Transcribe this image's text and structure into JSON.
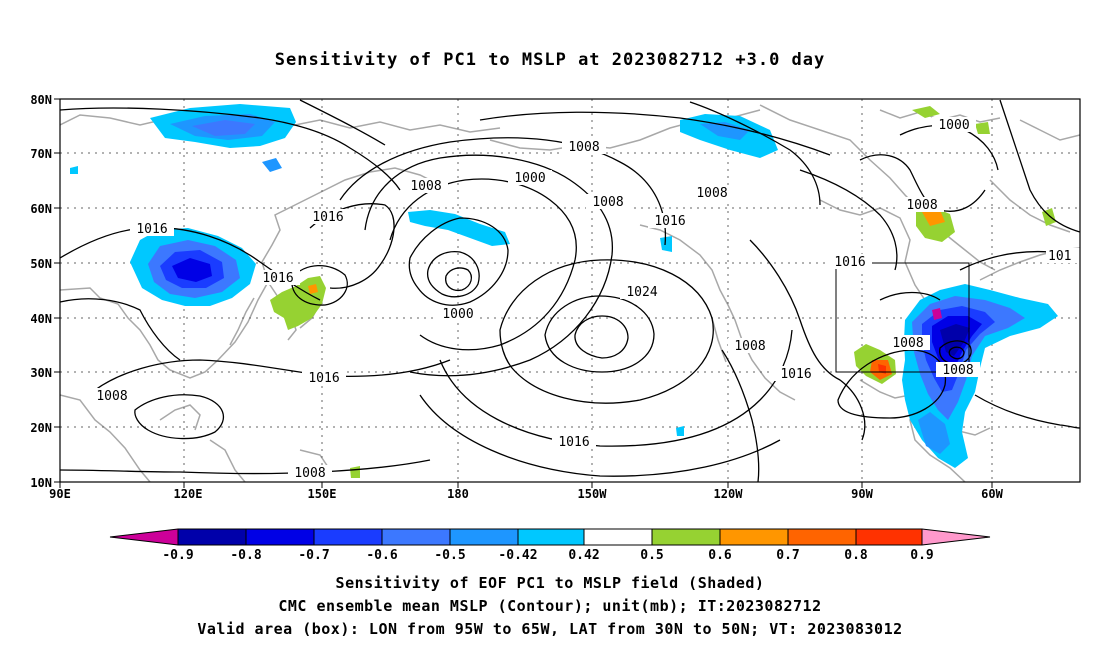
{
  "title": "Sensitivity of PC1 to MSLP at 2023082712 +3.0 day",
  "lat_labels": [
    "80N",
    "70N",
    "60N",
    "50N",
    "40N",
    "30N",
    "20N",
    "10N"
  ],
  "lon_labels": [
    "90E",
    "120E",
    "150E",
    "180",
    "150W",
    "120W",
    "90W",
    "60W"
  ],
  "contour_labels": [
    "1008",
    "1000",
    "1008",
    "1008",
    "1016",
    "1016",
    "1016",
    "1000",
    "1016",
    "1024",
    "1016",
    "1016",
    "1016",
    "1008",
    "1008",
    "1008",
    "1008",
    "1000",
    "1008",
    "1016",
    "1008",
    "1008",
    "101"
  ],
  "colorbar": {
    "labels": [
      "-0.9",
      "-0.8",
      "-0.7",
      "-0.6",
      "-0.5",
      "-0.42",
      "0.42",
      "0.5",
      "0.6",
      "0.7",
      "0.8",
      "0.9"
    ],
    "colors": [
      "#cc0099",
      "#0000aa",
      "#0000e6",
      "#1a3cff",
      "#3c78ff",
      "#1e96ff",
      "#00c8ff",
      "#ffffff",
      "#96d232",
      "#ff9600",
      "#ff6400",
      "#ff3200",
      "#ff0000",
      "#ff99cc"
    ]
  },
  "valid_box": {
    "lon_min": -95,
    "lon_max": -65,
    "lat_min": 30,
    "lat_max": 50
  },
  "caption": {
    "line1": "Sensitivity of EOF PC1 to MSLP field (Shaded)",
    "line2": "CMC ensemble mean MSLP (Contour); unit(mb); IT:2023082712",
    "line3": "Valid area (box): LON from 95W to 65W, LAT from 30N to 50N; VT: 2023083012"
  }
}
